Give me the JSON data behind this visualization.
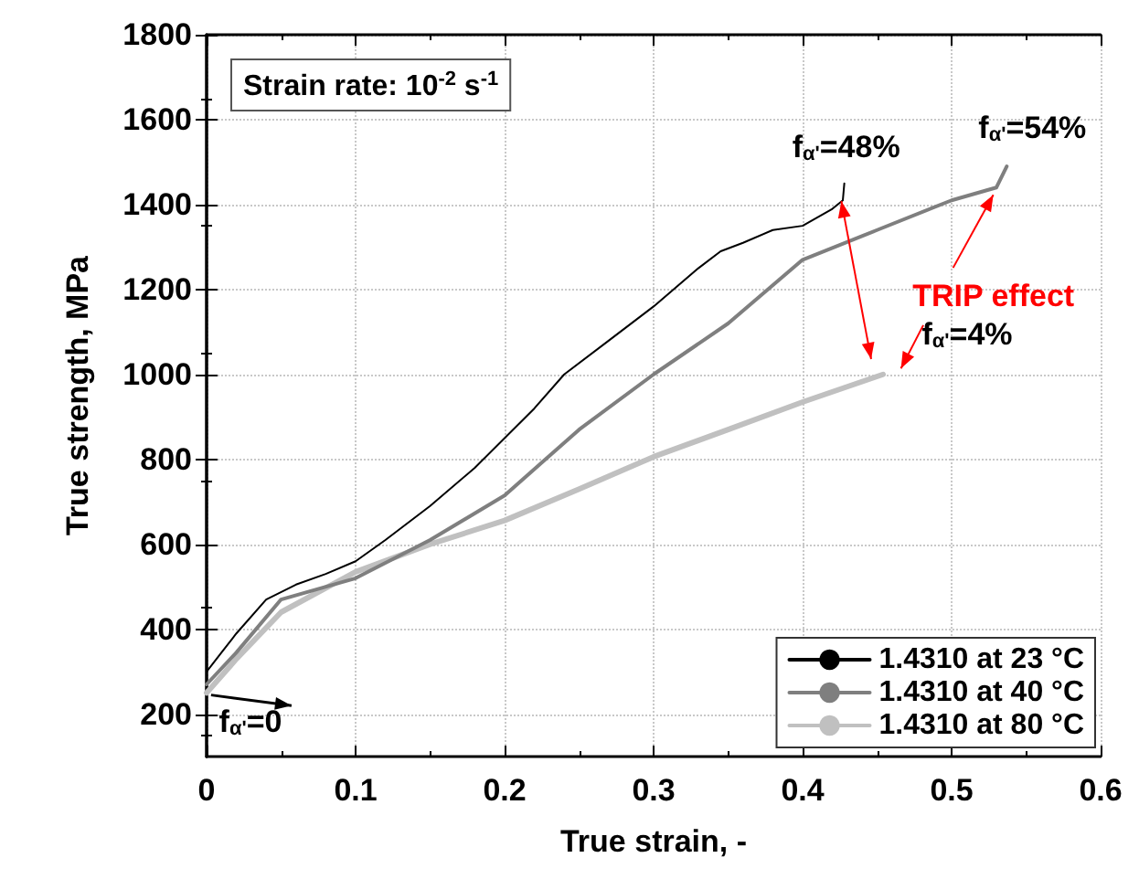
{
  "chart_data": {
    "type": "line",
    "xlabel": "True strain, -",
    "ylabel": "True strength, MPa",
    "xlim": [
      0,
      0.6
    ],
    "xticks": [
      0,
      0.1,
      0.2,
      0.3,
      0.4,
      0.5,
      0.6
    ],
    "ylim": [
      100,
      1800
    ],
    "yticks": [
      200,
      400,
      600,
      800,
      1000,
      1200,
      1400,
      1600,
      1800
    ],
    "grid": true,
    "legend": "bottom right",
    "marker": "none",
    "line_style": "solid",
    "series": [
      {
        "name": "1.4310 at 23 °C",
        "color": "#000000",
        "x": [
          0,
          0.01,
          0.02,
          0.04,
          0.06,
          0.08,
          0.1,
          0.12,
          0.15,
          0.18,
          0.2,
          0.22,
          0.24,
          0.27,
          0.3,
          0.33,
          0.345,
          0.36,
          0.38,
          0.4,
          0.41,
          0.42,
          0.427,
          0.428
        ],
        "values": [
          300,
          345,
          390,
          470,
          505,
          530,
          560,
          610,
          690,
          780,
          850,
          920,
          1000,
          1080,
          1160,
          1250,
          1290,
          1310,
          1340,
          1350,
          1370,
          1390,
          1410,
          1450
        ]
      },
      {
        "name": "1.4310 at 40 °C",
        "color": "#7f7f7f",
        "x": [
          0,
          0.02,
          0.05,
          0.1,
          0.15,
          0.2,
          0.25,
          0.3,
          0.35,
          0.4,
          0.45,
          0.5,
          0.53,
          0.537
        ],
        "values": [
          270,
          345,
          470,
          520,
          610,
          715,
          870,
          1000,
          1120,
          1270,
          1340,
          1410,
          1440,
          1490
        ]
      },
      {
        "name": "1.4310 at 80 °C",
        "color": "#c0c0c0",
        "x": [
          0,
          0.01,
          0.02,
          0.05,
          0.1,
          0.15,
          0.2,
          0.25,
          0.3,
          0.35,
          0.4,
          0.454
        ],
        "values": [
          250,
          290,
          330,
          440,
          535,
          600,
          656,
          730,
          806,
          870,
          935,
          1000
        ]
      }
    ],
    "annotations": [
      "Strain rate: 10$^{-2}$ s$^{-1}$",
      {
        "text": "f$_{α'}$=48%",
        "x": 0.428,
        "y": 1450
      },
      {
        "text": "f$_{α'}$=54%",
        "x": 0.537,
        "y": 1490
      },
      {
        "text": "f$_{α'}$=4%",
        "x": 0.454,
        "y": 1000
      },
      {
        "text": "f$_{α'}$=0",
        "x": 0,
        "y": 250
      },
      "TRIP effect"
    ]
  }
}
